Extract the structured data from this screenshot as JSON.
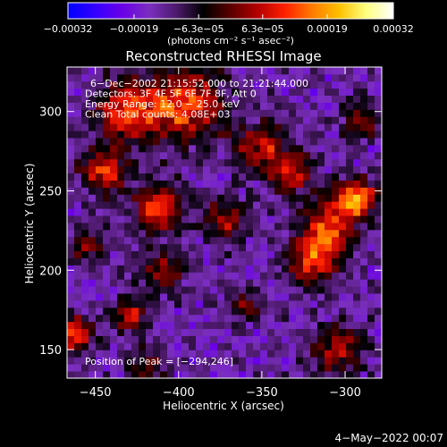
{
  "chart_data": {
    "type": "heatmap",
    "title": "Reconstructed RHESSI Image",
    "xlabel": "Heliocentric X (arcsec)",
    "ylabel": "Heliocentric Y (arcsec)",
    "xlim": [
      -467,
      -278
    ],
    "ylim": [
      132,
      328
    ],
    "xticks": [
      -450,
      -400,
      -350,
      -300
    ],
    "xtick_labels": [
      "−450",
      "−400",
      "−350",
      "−300"
    ],
    "yticks": [
      150,
      200,
      250,
      300
    ],
    "ytick_labels": [
      "150",
      "200",
      "250",
      "300"
    ],
    "colorbar": {
      "range": [
        -0.00032,
        0.00032
      ],
      "tick_values": [
        -0.00032,
        -0.00019,
        -6.3e-05,
        6.3e-05,
        0.00019,
        0.00032
      ],
      "tick_labels": [
        "−0.00032",
        "−0.00019",
        "−6.3e−05",
        "6.3e−05",
        "0.00019",
        "0.00032"
      ],
      "unit_label": "(photons cm⁻² s⁻¹ asec⁻²)",
      "colormap": [
        "#0000ff",
        "#3300ff",
        "#6a00e8",
        "#7b2fbf",
        "#4d1a6b",
        "#000000",
        "#5a0000",
        "#b40000",
        "#ff2000",
        "#ff7a00",
        "#ffc000",
        "#ffff80",
        "#ffffff"
      ]
    },
    "annotations": [
      "6−Dec−2002 21:15:52.000 to 21:21:44.000",
      "Detectors: 3F 4F 5F 6F 7F 8F, Att 0",
      "Energy Range: 12.0 − 25.0 keV",
      "Clean      Total counts: 4.08E+03"
    ],
    "peak_label": "Position of Peak = [−294,246]",
    "peak_position": [
      -294,
      246
    ],
    "grid": false,
    "legend": "none"
  },
  "footer": {
    "timestamp": "4−May−2022 00:07"
  }
}
